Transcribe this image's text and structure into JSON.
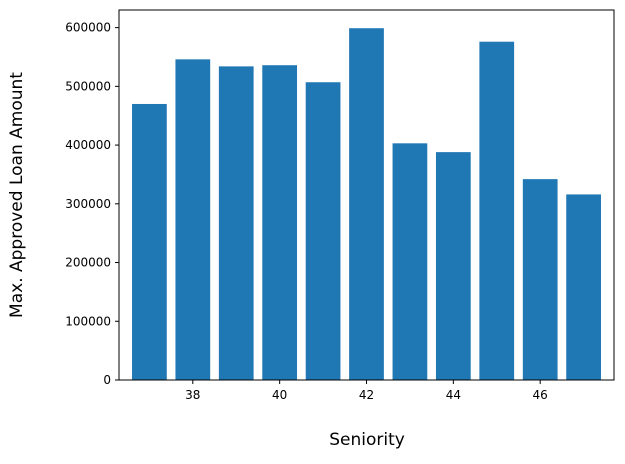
{
  "chart_data": {
    "type": "bar",
    "xlabel": "Seniority",
    "ylabel": "Max. Approved Loan Amount",
    "x": [
      37,
      38,
      39,
      40,
      41,
      42,
      43,
      44,
      45,
      46,
      47
    ],
    "values": [
      470000,
      546000,
      534000,
      536000,
      507000,
      599000,
      403000,
      388000,
      576000,
      342000,
      316000
    ],
    "xlim": [
      36.3,
      47.7
    ],
    "ylim": [
      0,
      630000
    ],
    "xticks": [
      38,
      40,
      42,
      44,
      46
    ],
    "xtick_labels": [
      "38",
      "40",
      "42",
      "44",
      "46"
    ],
    "yticks": [
      0,
      100000,
      200000,
      300000,
      400000,
      500000,
      600000
    ],
    "ytick_labels": [
      "0",
      "100000",
      "200000",
      "300000",
      "400000",
      "500000",
      "600000"
    ],
    "bar_width": 0.8,
    "bar_color": "#1f77b4",
    "grid": false,
    "legend": "none"
  }
}
